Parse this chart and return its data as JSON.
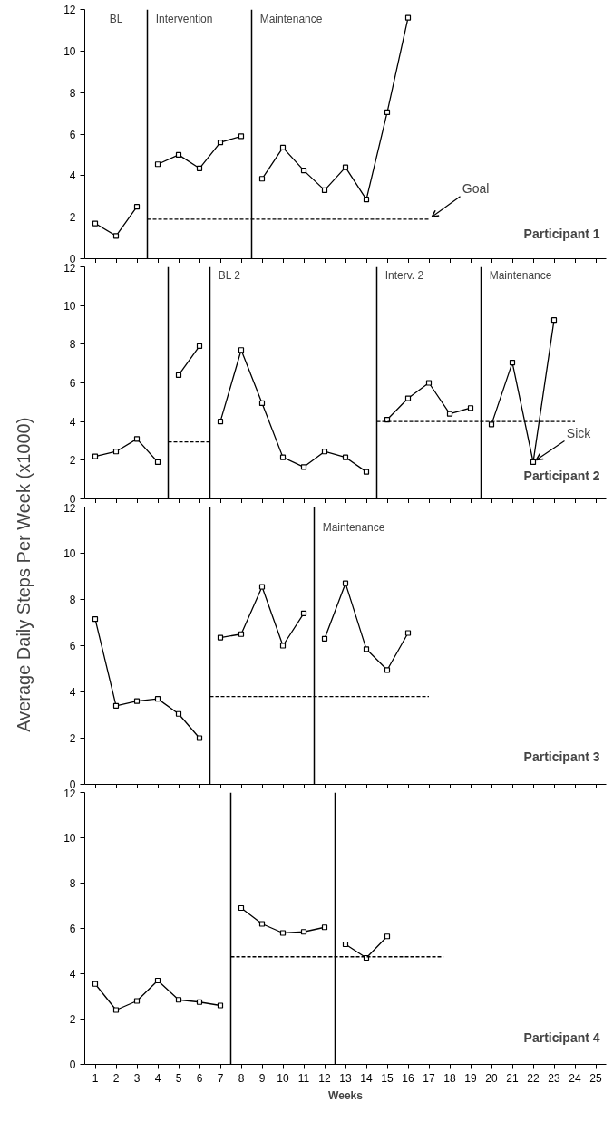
{
  "chart_data": [
    {
      "type": "line",
      "ylim": [
        0,
        12
      ],
      "yticks": [
        0,
        2,
        4,
        6,
        8,
        10,
        12
      ],
      "xlim": [
        0.5,
        25.5
      ],
      "xticks": [
        1,
        2,
        3,
        4,
        5,
        6,
        7,
        8,
        9,
        10,
        11,
        12,
        13,
        14,
        15,
        16,
        17,
        18,
        19,
        20,
        21,
        22,
        23,
        24,
        25
      ],
      "tick_labels": "y",
      "grid": false,
      "marker": "square",
      "line_style": "solid",
      "series": [
        {
          "color": "#000000",
          "x": [
            1,
            2,
            3
          ],
          "values": [
            1.7,
            1.1,
            2.5
          ]
        },
        {
          "color": "#000000",
          "x": [
            4,
            5,
            6,
            7,
            8
          ],
          "values": [
            4.55,
            5.0,
            4.35,
            5.6,
            5.9
          ]
        },
        {
          "color": "#000000",
          "x": [
            9,
            10,
            11,
            12,
            13,
            14,
            15,
            16
          ],
          "values": [
            3.85,
            5.35,
            4.25,
            3.3,
            4.4,
            2.85,
            7.05,
            11.6
          ]
        },
        {
          "color": "#000000",
          "x": [
            3.5,
            17
          ],
          "values": [
            1.9,
            1.9
          ],
          "marker": "none",
          "line_style": "dashed"
        }
      ],
      "title": "Participant 1",
      "ref_lines": [
        {
          "axis": "x",
          "value": 3.5,
          "color": "#000000",
          "label": "Intervention"
        },
        {
          "axis": "x",
          "value": 8.5,
          "color": "#000000",
          "label": "Maintenance"
        }
      ],
      "annotations": [
        "BL",
        {
          "text": "Goal",
          "x": 17,
          "y": 1.9
        }
      ]
    },
    {
      "type": "line",
      "ylim": [
        0,
        12
      ],
      "yticks": [
        0,
        2,
        4,
        6,
        8,
        10,
        12
      ],
      "xlim": [
        0.5,
        25.5
      ],
      "xticks": [
        1,
        2,
        3,
        4,
        5,
        6,
        7,
        8,
        9,
        10,
        11,
        12,
        13,
        14,
        15,
        16,
        17,
        18,
        19,
        20,
        21,
        22,
        23,
        24,
        25
      ],
      "tick_labels": "y",
      "grid": false,
      "marker": "square",
      "line_style": "solid",
      "series": [
        {
          "color": "#000000",
          "x": [
            1,
            2,
            3,
            4
          ],
          "values": [
            2.2,
            2.45,
            3.1,
            1.9
          ]
        },
        {
          "color": "#000000",
          "x": [
            5,
            6
          ],
          "values": [
            6.4,
            7.9
          ]
        },
        {
          "color": "#000000",
          "x": [
            7,
            8,
            9,
            10,
            11,
            12,
            13,
            14
          ],
          "values": [
            4.0,
            7.7,
            4.95,
            2.15,
            1.65,
            2.45,
            2.15,
            1.4
          ]
        },
        {
          "color": "#000000",
          "x": [
            15,
            16,
            17,
            18,
            19
          ],
          "values": [
            4.1,
            5.2,
            6.0,
            4.4,
            4.7
          ]
        },
        {
          "color": "#000000",
          "x": [
            20,
            21,
            22,
            23
          ],
          "values": [
            3.85,
            7.05,
            1.9,
            9.25
          ]
        },
        {
          "color": "#000000",
          "x": [
            4.5,
            6.5
          ],
          "values": [
            2.95,
            2.95
          ],
          "marker": "none",
          "line_style": "dashed"
        },
        {
          "color": "#000000",
          "x": [
            14.5,
            24
          ],
          "values": [
            4.0,
            4.0
          ],
          "marker": "none",
          "line_style": "dashed"
        }
      ],
      "title": "Participant 2",
      "ref_lines": [
        {
          "axis": "x",
          "value": 4.5,
          "color": "#000000"
        },
        {
          "axis": "x",
          "value": 6.5,
          "color": "#000000",
          "label": "BL 2"
        },
        {
          "axis": "x",
          "value": 14.5,
          "color": "#000000",
          "label": "Interv. 2"
        },
        {
          "axis": "x",
          "value": 19.5,
          "color": "#000000",
          "label": "Maintenance"
        }
      ],
      "annotations": [
        {
          "text": "Sick",
          "x": 22,
          "y": 1.9
        }
      ]
    },
    {
      "type": "line",
      "ylim": [
        0,
        12
      ],
      "yticks": [
        0,
        2,
        4,
        6,
        8,
        10,
        12
      ],
      "xlim": [
        0.5,
        25.5
      ],
      "xticks": [
        1,
        2,
        3,
        4,
        5,
        6,
        7,
        8,
        9,
        10,
        11,
        12,
        13,
        14,
        15,
        16,
        17,
        18,
        19,
        20,
        21,
        22,
        23,
        24,
        25
      ],
      "tick_labels": "y",
      "grid": false,
      "marker": "square",
      "line_style": "solid",
      "ylabel": "Average Daily Steps Per Week (x1000)",
      "series": [
        {
          "color": "#000000",
          "x": [
            1,
            2,
            3,
            4,
            5,
            6
          ],
          "values": [
            7.15,
            3.4,
            3.6,
            3.7,
            3.05,
            2.0
          ]
        },
        {
          "color": "#000000",
          "x": [
            7,
            8,
            9,
            10,
            11
          ],
          "values": [
            6.35,
            6.5,
            8.55,
            6.0,
            7.4
          ]
        },
        {
          "color": "#000000",
          "x": [
            12,
            13,
            14,
            15,
            16
          ],
          "values": [
            6.3,
            8.7,
            5.85,
            4.95,
            6.55
          ]
        },
        {
          "color": "#000000",
          "x": [
            6.5,
            17
          ],
          "values": [
            3.8,
            3.8
          ],
          "marker": "none",
          "line_style": "dashed"
        }
      ],
      "title": "Participant 3",
      "ref_lines": [
        {
          "axis": "x",
          "value": 6.5,
          "color": "#000000"
        },
        {
          "axis": "x",
          "value": 11.5,
          "color": "#000000",
          "label": "Maintenance"
        }
      ]
    },
    {
      "type": "line",
      "ylim": [
        0,
        12
      ],
      "yticks": [
        0,
        2,
        4,
        6,
        8,
        10,
        12
      ],
      "xlim": [
        0.5,
        25.5
      ],
      "xticks": [
        1,
        2,
        3,
        4,
        5,
        6,
        7,
        8,
        9,
        10,
        11,
        12,
        13,
        14,
        15,
        16,
        17,
        18,
        19,
        20,
        21,
        22,
        23,
        24,
        25
      ],
      "grid": false,
      "marker": "square",
      "line_style": "solid",
      "xlabel": "Weeks",
      "series": [
        {
          "color": "#000000",
          "x": [
            1,
            2,
            3,
            4,
            5,
            6,
            7
          ],
          "values": [
            3.55,
            2.4,
            2.8,
            3.7,
            2.85,
            2.75,
            2.6
          ]
        },
        {
          "color": "#000000",
          "x": [
            8,
            9,
            10,
            11,
            12
          ],
          "values": [
            6.9,
            6.2,
            5.8,
            5.85,
            6.05
          ]
        },
        {
          "color": "#000000",
          "x": [
            13,
            14,
            15
          ],
          "values": [
            5.3,
            4.7,
            5.65
          ]
        },
        {
          "color": "#000000",
          "x": [
            7.5,
            17.7
          ],
          "values": [
            4.75,
            4.75
          ],
          "marker": "none",
          "line_style": "dashed"
        }
      ],
      "title": "Participant 4",
      "ref_lines": [
        {
          "axis": "x",
          "value": 7.5,
          "color": "#000000"
        },
        {
          "axis": "x",
          "value": 12.5,
          "color": "#000000"
        }
      ]
    }
  ]
}
